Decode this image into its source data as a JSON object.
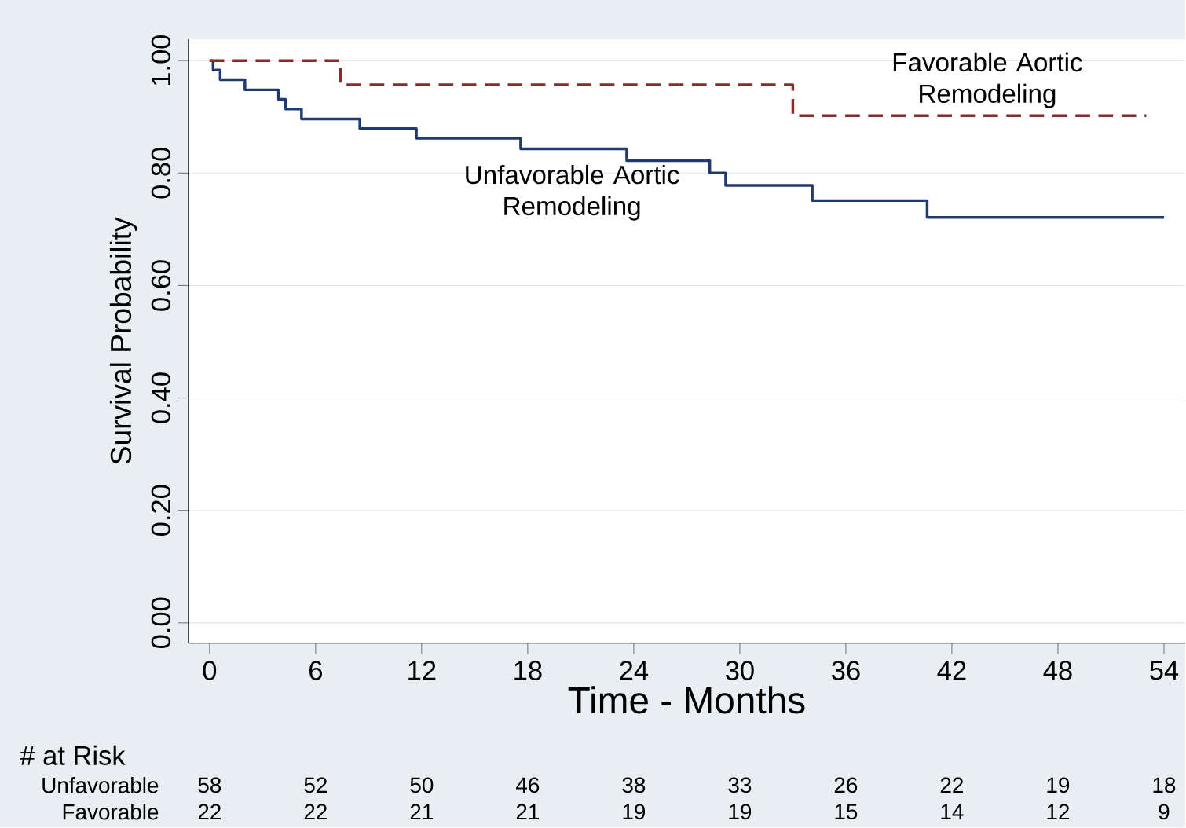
{
  "chart_data": {
    "type": "step",
    "xlabel": "Time - Months",
    "ylabel": "Survival Probability",
    "xlim": [
      -1.2,
      55.2
    ],
    "ylim": [
      -0.036,
      1.038
    ],
    "xticks": [
      0,
      6,
      12,
      18,
      24,
      30,
      36,
      42,
      48,
      54
    ],
    "yticks": [
      {
        "value": 0,
        "label": "0.00"
      },
      {
        "value": 0.2,
        "label": "0.20"
      },
      {
        "value": 0.4,
        "label": "0.40"
      },
      {
        "value": 0.6,
        "label": "0.60"
      },
      {
        "value": 0.8,
        "label": "0.80"
      },
      {
        "value": 1,
        "label": "1.00"
      }
    ],
    "grid": "y",
    "legend": false,
    "marker": "none",
    "series": [
      {
        "name": "Unfavorable Aortic Remodeling",
        "color": "#1f3a6e",
        "line_style": "solid",
        "x": [
          0,
          0.2,
          0.6,
          2,
          3.9,
          4.3,
          5.2,
          8.5,
          11.7,
          17.6,
          23.6,
          28.3,
          29.2,
          34.1,
          40.6,
          54
        ],
        "values": [
          1,
          0.983,
          0.966,
          0.948,
          0.931,
          0.914,
          0.896,
          0.879,
          0.862,
          0.843,
          0.822,
          0.8,
          0.778,
          0.751,
          0.721,
          0.721
        ]
      },
      {
        "name": "Favorable Aortic Remodeling",
        "color": "#8b2a2a",
        "line_style": "dashed",
        "x": [
          0,
          7.4,
          33,
          53
        ],
        "values": [
          1,
          0.957,
          0.902,
          0.902
        ]
      }
    ],
    "annotations": [
      "# at Risk",
      "Unfavorable",
      "58",
      "52",
      "50",
      "46",
      "38",
      "33",
      "26",
      "22",
      "19",
      "18",
      "Favorable",
      "22",
      "22",
      "21",
      "21",
      "19",
      "19",
      "15",
      "14",
      "12",
      "9"
    ]
  }
}
